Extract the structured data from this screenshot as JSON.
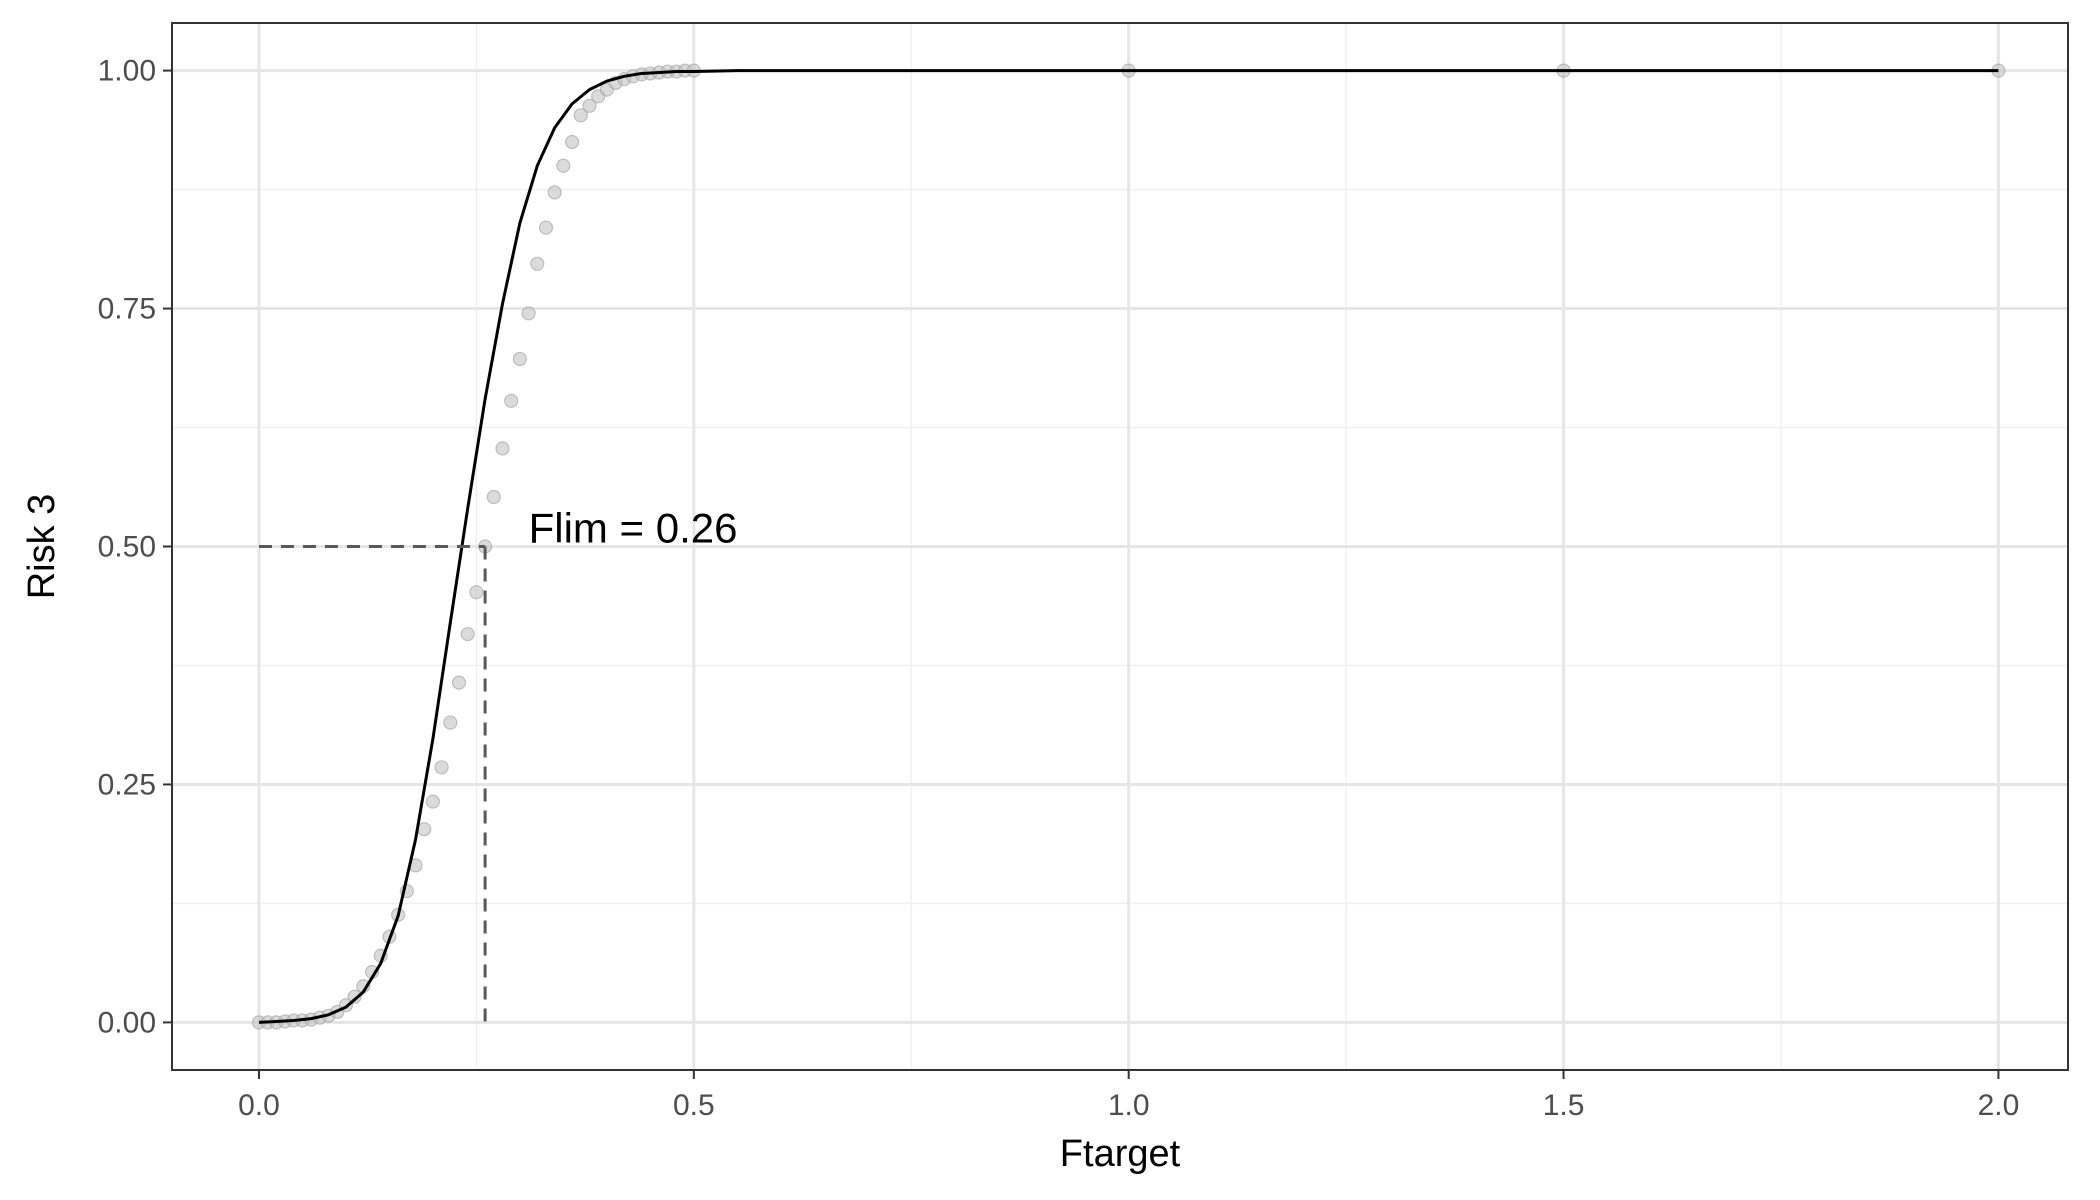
{
  "chart_data": {
    "type": "scatter",
    "xlabel": "Ftarget",
    "ylabel": "Risk 3",
    "xlim": [
      -0.1,
      2.08
    ],
    "ylim": [
      -0.05,
      1.05
    ],
    "x_ticks": [
      0.0,
      0.5,
      1.0,
      1.5,
      2.0
    ],
    "x_tick_labels": [
      "0.0",
      "0.5",
      "1.0",
      "1.5",
      "2.0"
    ],
    "y_ticks": [
      0.0,
      0.25,
      0.5,
      0.75,
      1.0
    ],
    "y_tick_labels": [
      "0.00",
      "0.25",
      "0.50",
      "0.75",
      "1.00"
    ],
    "x_minor": [
      0.25,
      0.75,
      1.25,
      1.75
    ],
    "y_minor": [
      0.125,
      0.375,
      0.625,
      0.875
    ],
    "grid": true,
    "series": [
      {
        "kind": "points",
        "color": "#bdbdbd",
        "x": [
          0.0,
          0.01,
          0.02,
          0.03,
          0.04,
          0.05,
          0.06,
          0.07,
          0.08,
          0.09,
          0.1,
          0.11,
          0.12,
          0.13,
          0.14,
          0.15,
          0.16,
          0.17,
          0.18,
          0.19,
          0.2,
          0.21,
          0.22,
          0.23,
          0.24,
          0.25,
          0.26,
          0.27,
          0.28,
          0.29,
          0.3,
          0.31,
          0.32,
          0.33,
          0.34,
          0.35,
          0.36,
          0.37,
          0.38,
          0.39,
          0.4,
          0.41,
          0.42,
          0.43,
          0.44,
          0.45,
          0.46,
          0.47,
          0.48,
          0.49,
          0.5,
          1.0,
          1.5,
          2.0
        ],
        "y": [
          0.0,
          0.0,
          0.0,
          0.001,
          0.002,
          0.002,
          0.003,
          0.005,
          0.007,
          0.011,
          0.018,
          0.027,
          0.038,
          0.053,
          0.07,
          0.09,
          0.113,
          0.138,
          0.165,
          0.203,
          0.232,
          0.268,
          0.315,
          0.357,
          0.408,
          0.452,
          0.5,
          0.552,
          0.603,
          0.653,
          0.697,
          0.745,
          0.797,
          0.835,
          0.872,
          0.9,
          0.925,
          0.953,
          0.963,
          0.973,
          0.98,
          0.987,
          0.991,
          0.994,
          0.996,
          0.997,
          0.998,
          0.999,
          0.999,
          1.0,
          1.0,
          1.0,
          1.0,
          1.0
        ]
      },
      {
        "kind": "line",
        "color": "#000000",
        "x": [
          0.0,
          0.02,
          0.04,
          0.06,
          0.08,
          0.1,
          0.12,
          0.14,
          0.16,
          0.18,
          0.2,
          0.22,
          0.24,
          0.26,
          0.28,
          0.3,
          0.32,
          0.34,
          0.36,
          0.38,
          0.4,
          0.42,
          0.44,
          0.46,
          0.48,
          0.5,
          0.55,
          0.6,
          0.75,
          1.0,
          1.5,
          2.0
        ],
        "y": [
          0.0,
          0.001,
          0.002,
          0.004,
          0.008,
          0.016,
          0.032,
          0.062,
          0.112,
          0.192,
          0.298,
          0.42,
          0.54,
          0.655,
          0.755,
          0.84,
          0.9,
          0.94,
          0.965,
          0.98,
          0.989,
          0.994,
          0.997,
          0.998,
          0.999,
          0.999,
          1.0,
          1.0,
          1.0,
          1.0,
          1.0,
          1.0
        ]
      },
      {
        "kind": "dashed",
        "color": "#595959",
        "x": [
          0.0,
          0.26
        ],
        "y": [
          0.5,
          0.5
        ]
      },
      {
        "kind": "dashed",
        "color": "#595959",
        "x": [
          0.26,
          0.26
        ],
        "y": [
          0.5,
          0.0
        ]
      }
    ],
    "annotations": [
      {
        "text": "Flim =  0.26",
        "x": 0.31,
        "y": 0.52
      }
    ]
  }
}
